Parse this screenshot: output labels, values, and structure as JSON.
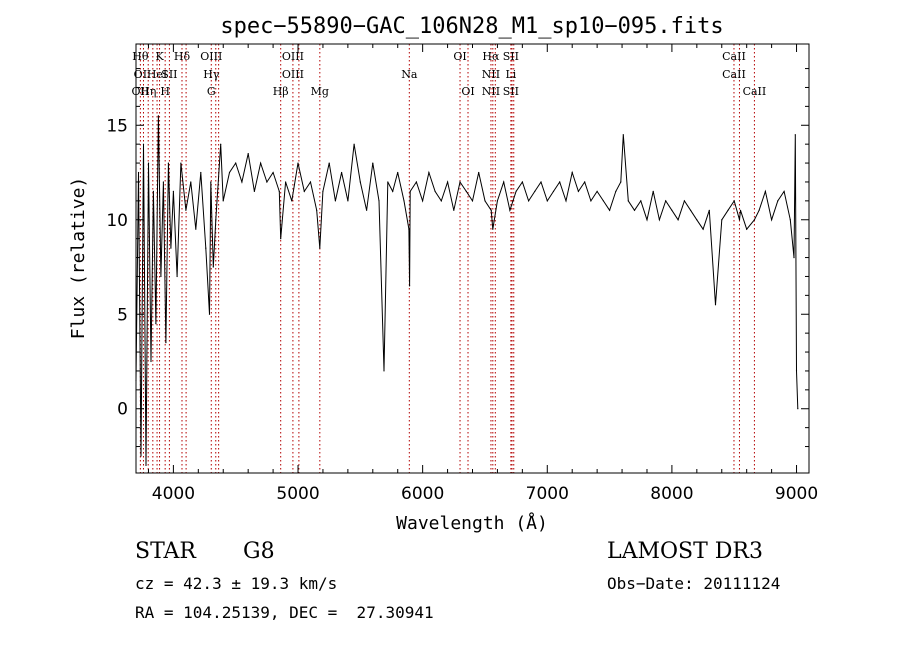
{
  "chart_data": {
    "type": "line",
    "title": "spec−55890−GAC_106N28_M1_sp10−095.fits",
    "xlabel": "Wavelength (Å)",
    "ylabel": "Flux (relative)",
    "xlim": [
      3700,
      9100
    ],
    "ylim": [
      -3.4,
      19.3
    ],
    "xticks": [
      4000,
      5000,
      6000,
      7000,
      8000,
      9000
    ],
    "yticks": [
      0,
      5,
      10,
      15
    ],
    "grid": false,
    "series": [
      {
        "name": "flux",
        "x": [
          3700,
          3720,
          3740,
          3760,
          3780,
          3800,
          3820,
          3840,
          3860,
          3880,
          3900,
          3920,
          3940,
          3960,
          3980,
          4000,
          4030,
          4060,
          4100,
          4140,
          4180,
          4220,
          4260,
          4290,
          4300,
          4320,
          4340,
          4380,
          4400,
          4450,
          4500,
          4550,
          4600,
          4650,
          4700,
          4750,
          4800,
          4850,
          4861,
          4900,
          4950,
          5000,
          5050,
          5100,
          5150,
          5175,
          5200,
          5250,
          5300,
          5350,
          5400,
          5450,
          5500,
          5550,
          5600,
          5650,
          5690,
          5720,
          5760,
          5800,
          5850,
          5890,
          5895,
          5900,
          5950,
          6000,
          6050,
          6100,
          6150,
          6200,
          6250,
          6300,
          6350,
          6400,
          6450,
          6500,
          6550,
          6563,
          6600,
          6650,
          6700,
          6750,
          6800,
          6850,
          6900,
          6950,
          7000,
          7050,
          7100,
          7150,
          7200,
          7250,
          7300,
          7350,
          7400,
          7450,
          7500,
          7550,
          7590,
          7610,
          7650,
          7700,
          7750,
          7800,
          7850,
          7900,
          7950,
          8000,
          8050,
          8100,
          8150,
          8200,
          8250,
          8300,
          8350,
          8400,
          8450,
          8500,
          8542,
          8550,
          8600,
          8662,
          8700,
          8750,
          8800,
          8850,
          8900,
          8950,
          8980,
          8990,
          9000,
          9010
        ],
        "values": [
          1.5,
          12.5,
          -2.5,
          14,
          -3,
          13,
          2.5,
          11.5,
          4.5,
          15.5,
          7,
          12,
          3.5,
          13,
          8.5,
          11.5,
          7,
          13,
          10.5,
          12,
          9.5,
          12.5,
          8.5,
          5,
          12,
          7.5,
          10,
          14,
          11,
          12.5,
          13,
          12,
          13.5,
          11.5,
          13,
          12,
          12.5,
          11.5,
          9,
          12,
          11,
          13,
          11.5,
          12,
          10.5,
          8.5,
          11.5,
          13,
          11,
          12.5,
          11,
          14,
          12,
          10.5,
          13,
          11,
          2,
          12,
          11.5,
          12.5,
          11,
          9.5,
          6.5,
          11.5,
          12,
          11,
          12.5,
          11.5,
          11,
          12,
          10.5,
          12,
          11.5,
          11,
          12.5,
          11,
          10.5,
          9.5,
          11,
          12,
          10.5,
          11.5,
          12,
          11,
          11.5,
          12,
          11,
          11.5,
          12,
          11,
          12.5,
          11.5,
          12,
          11,
          11.5,
          11,
          10.5,
          11.5,
          12,
          14.5,
          11,
          10.5,
          11,
          10,
          11.5,
          10,
          11,
          10.5,
          10,
          11,
          10.5,
          10,
          9.5,
          10.5,
          5.5,
          10,
          10.5,
          11,
          10,
          10.5,
          9.5,
          10,
          10.5,
          11.5,
          10,
          11,
          11.5,
          10,
          8,
          14.5,
          2,
          0
        ]
      }
    ],
    "lines": [
      {
        "x": 3735,
        "top": "Hθ",
        "mid": "OI",
        "low": "OII"
      },
      {
        "x": 3760,
        "top": "",
        "mid": "",
        "low": ""
      },
      {
        "x": 3798,
        "top": "",
        "mid": "",
        "low": "Hη"
      },
      {
        "x": 3835,
        "top": "",
        "mid": "",
        "low": ""
      },
      {
        "x": 3869,
        "top": "",
        "mid": "HeI",
        "low": ""
      },
      {
        "x": 3889,
        "top": "K",
        "mid": "",
        "low": ""
      },
      {
        "x": 3934,
        "top": "",
        "mid": "",
        "low": "H"
      },
      {
        "x": 3968,
        "top": "",
        "mid": "SII",
        "low": ""
      },
      {
        "x": 4069,
        "top": "Hδ",
        "mid": "",
        "low": ""
      },
      {
        "x": 4102,
        "top": "",
        "mid": "",
        "low": ""
      },
      {
        "x": 4304,
        "top": "OIII",
        "mid": "Hγ",
        "low": "G"
      },
      {
        "x": 4340,
        "top": "",
        "mid": "",
        "low": ""
      },
      {
        "x": 4363,
        "top": "",
        "mid": "",
        "low": ""
      },
      {
        "x": 4861,
        "top": "",
        "mid": "",
        "low": "Hβ"
      },
      {
        "x": 4959,
        "top": "OIII",
        "mid": "OIII",
        "low": ""
      },
      {
        "x": 5007,
        "top": "",
        "mid": "",
        "low": ""
      },
      {
        "x": 5175,
        "top": "",
        "mid": "",
        "low": "Mg"
      },
      {
        "x": 5893,
        "top": "",
        "mid": "Na",
        "low": ""
      },
      {
        "x": 6300,
        "top": "OI",
        "mid": "",
        "low": ""
      },
      {
        "x": 6364,
        "top": "",
        "mid": "",
        "low": "OI"
      },
      {
        "x": 6548,
        "top": "Hα",
        "mid": "NII",
        "low": "NII"
      },
      {
        "x": 6563,
        "top": "",
        "mid": "",
        "low": ""
      },
      {
        "x": 6583,
        "top": "",
        "mid": "",
        "low": ""
      },
      {
        "x": 6708,
        "top": "SII",
        "mid": "Li",
        "low": "SII"
      },
      {
        "x": 6717,
        "top": "",
        "mid": "",
        "low": ""
      },
      {
        "x": 6731,
        "top": "",
        "mid": "",
        "low": ""
      },
      {
        "x": 8498,
        "top": "CaII",
        "mid": "CaII",
        "low": ""
      },
      {
        "x": 8542,
        "top": "",
        "mid": "",
        "low": ""
      },
      {
        "x": 8662,
        "top": "",
        "mid": "",
        "low": "CaII"
      }
    ]
  },
  "info": {
    "class": "STAR",
    "subclass": "G8",
    "survey": "LAMOST DR3",
    "cz": "cz = 42.3 ± 19.3 km/s",
    "obs_date": "Obs−Date: 20111124",
    "coords": "RA = 104.25139, DEC =  27.30941"
  },
  "colors": {
    "line": "#000000",
    "marker": "#b30000",
    "background": "#ffffff"
  }
}
